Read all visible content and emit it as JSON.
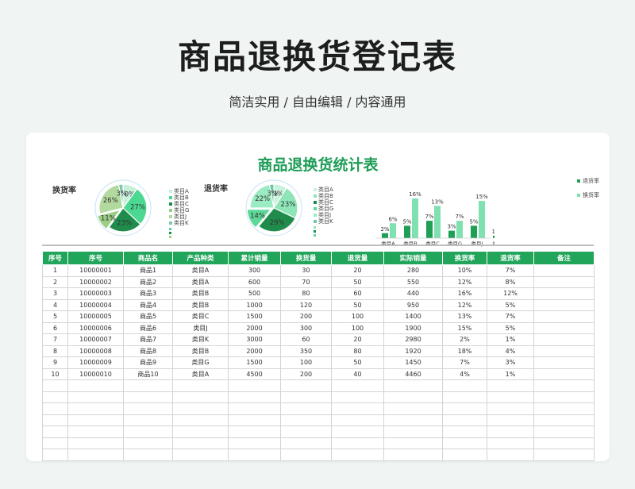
{
  "page": {
    "title": "商品退换货登记表",
    "subtitle": "简洁实用 / 自由编辑 / 内容通用"
  },
  "sheet": {
    "title": "商品退换货统计表",
    "exchange_chart_label": "换货率",
    "return_chart_label": "退货率"
  },
  "colors": {
    "accent": "#21a55a",
    "title_green": "#1e9d57",
    "return_bar": "#1f9e55",
    "exchange_bar": "#7fe0b0"
  },
  "chart_data": [
    {
      "type": "pie",
      "title": "换货率",
      "labels": [
        "类目A",
        "类目B",
        "类目C",
        "类目G",
        "类目J",
        "类目K"
      ],
      "values": [
        10,
        27,
        23,
        11,
        26,
        3
      ],
      "value_labels": [
        "10%",
        "27%",
        "23%",
        "11%",
        "26%",
        "3%"
      ],
      "colors": [
        "#c6f0da",
        "#4bd890",
        "#1f8c4c",
        "#9ccf86",
        "#b2d99e",
        "#7ec8b0"
      ],
      "legend": "right"
    },
    {
      "type": "pie",
      "title": "退货率",
      "labels": [
        "类目A",
        "类目B",
        "类目C",
        "类目G",
        "类目J",
        "类目K"
      ],
      "values": [
        9,
        23,
        29,
        14,
        22,
        3
      ],
      "value_labels": [
        "9%",
        "23%",
        "29%",
        "14%",
        "22%",
        "3%"
      ],
      "colors": [
        "#c8f2de",
        "#8ee6b8",
        "#1f8c4c",
        "#5cd898",
        "#9aeac2",
        "#6cc9a4"
      ],
      "legend": "right"
    },
    {
      "type": "bar",
      "categories": [
        "类目A",
        "类目B",
        "类目C",
        "类目G",
        "类目J",
        "类目K"
      ],
      "series": [
        {
          "name": "退货率",
          "values": [
            2,
            5,
            7,
            3,
            5,
            1
          ],
          "labels": [
            "2%",
            "5%",
            "7%",
            "3%",
            "5%",
            "1%"
          ]
        },
        {
          "name": "换货率",
          "values": [
            6,
            16,
            13,
            7,
            15,
            2
          ],
          "labels": [
            "6%",
            "16%",
            "13%",
            "7%",
            "15%",
            "2%"
          ]
        }
      ],
      "legend": "right"
    }
  ],
  "table": {
    "headers": [
      "序号",
      "序号",
      "商品名",
      "产品种类",
      "累计销量",
      "换货量",
      "退货量",
      "实际销量",
      "换货率",
      "退货率",
      "备注"
    ],
    "rows": [
      [
        "1",
        "10000001",
        "商品1",
        "类目A",
        "300",
        "30",
        "20",
        "280",
        "10%",
        "7%",
        ""
      ],
      [
        "2",
        "10000002",
        "商品2",
        "类目A",
        "600",
        "70",
        "50",
        "550",
        "12%",
        "8%",
        ""
      ],
      [
        "3",
        "10000003",
        "商品3",
        "类目B",
        "500",
        "80",
        "60",
        "440",
        "16%",
        "12%",
        ""
      ],
      [
        "4",
        "10000004",
        "商品4",
        "类目B",
        "1000",
        "120",
        "50",
        "950",
        "12%",
        "5%",
        ""
      ],
      [
        "5",
        "10000005",
        "商品5",
        "类目C",
        "1500",
        "200",
        "100",
        "1400",
        "13%",
        "7%",
        ""
      ],
      [
        "6",
        "10000006",
        "商品6",
        "类目J",
        "2000",
        "300",
        "100",
        "1900",
        "15%",
        "5%",
        ""
      ],
      [
        "7",
        "10000007",
        "商品7",
        "类目K",
        "3000",
        "60",
        "20",
        "2980",
        "2%",
        "1%",
        ""
      ],
      [
        "8",
        "10000008",
        "商品8",
        "类目B",
        "2000",
        "350",
        "80",
        "1920",
        "18%",
        "4%",
        ""
      ],
      [
        "9",
        "10000009",
        "商品9",
        "类目G",
        "1500",
        "100",
        "50",
        "1450",
        "7%",
        "3%",
        ""
      ],
      [
        "10",
        "10000010",
        "商品10",
        "类目A",
        "4500",
        "200",
        "40",
        "4460",
        "4%",
        "1%",
        ""
      ],
      [
        "",
        "",
        "",
        "",
        "",
        "",
        "",
        "",
        "",
        "",
        ""
      ],
      [
        "",
        "",
        "",
        "",
        "",
        "",
        "",
        "",
        "",
        "",
        ""
      ],
      [
        "",
        "",
        "",
        "",
        "",
        "",
        "",
        "",
        "",
        "",
        ""
      ],
      [
        "",
        "",
        "",
        "",
        "",
        "",
        "",
        "",
        "",
        "",
        ""
      ],
      [
        "",
        "",
        "",
        "",
        "",
        "",
        "",
        "",
        "",
        "",
        ""
      ],
      [
        "",
        "",
        "",
        "",
        "",
        "",
        "",
        "",
        "",
        "",
        ""
      ],
      [
        "",
        "",
        "",
        "",
        "",
        "",
        "",
        "",
        "",
        "",
        ""
      ]
    ]
  }
}
